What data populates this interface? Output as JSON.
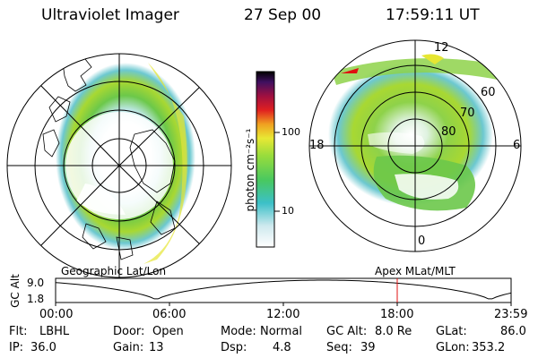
{
  "header": {
    "instrument": "Ultraviolet Imager",
    "date": "27 Sep 00",
    "time": "17:59:11 UT"
  },
  "left_panel": {
    "label": "Geographic Lat/Lon"
  },
  "right_panel": {
    "label": "Apex MLat/MLT",
    "mlt_labels": [
      "12",
      "18",
      "6",
      "0"
    ],
    "lat_labels": [
      "60",
      "70",
      "80"
    ]
  },
  "colorbar": {
    "axis_label": "photon cm⁻²s⁻¹",
    "ticks": [
      "100",
      "10"
    ]
  },
  "altitude_plot": {
    "ylabel": "GC Alt",
    "y_ticks": [
      "9.0",
      "1.8"
    ],
    "x_ticks": [
      "00:00",
      "06:00",
      "12:00",
      "18:00",
      "23:59"
    ],
    "current_time_fraction": 0.75
  },
  "parameters": [
    {
      "label": "Flt:",
      "value": "LBHL"
    },
    {
      "label": "Door:",
      "value": "Open"
    },
    {
      "label": "Mode:",
      "value": "Normal"
    },
    {
      "label": "GC Alt:",
      "value": "8.0 Re"
    },
    {
      "label": "GLat:",
      "value": "86.0"
    },
    {
      "label": "IP:",
      "value": "36.0"
    },
    {
      "label": "Gain:",
      "value": "13"
    },
    {
      "label": "Dsp:",
      "value": "4.8"
    },
    {
      "label": "Seq:",
      "value": "39"
    },
    {
      "label": "GLon:",
      "value": "353.2"
    }
  ],
  "colors": {
    "accent_red": "#e01010",
    "aurora_green": "#5ac83c",
    "aurora_yellow": "#e6e632",
    "background": "#ffffff"
  }
}
